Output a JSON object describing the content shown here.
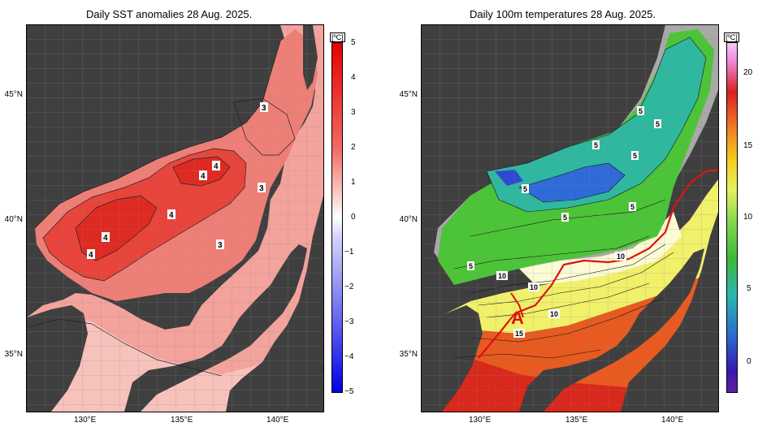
{
  "left": {
    "title": "Daily SST anomalies 28 Aug. 2025.",
    "unit": "[ºC]",
    "colorbar_ticks": [
      "5",
      "4",
      "3",
      "2",
      "1",
      "0",
      "−1",
      "−2",
      "−3",
      "−4",
      "−5"
    ],
    "contour_labels": [
      "3",
      "4",
      "4",
      "3",
      "4",
      "4",
      "4",
      "3"
    ],
    "colors": {
      "high": "#e8302a",
      "low": "#1a1aff",
      "zero": "#ffffff",
      "land": "#3f3f3f"
    }
  },
  "right": {
    "title": "Daily 100m temperatures 28 Aug. 2025.",
    "unit": "[ºC]",
    "colorbar_ticks": [
      "20",
      "15",
      "10",
      "5",
      "0"
    ],
    "contour_labels": [
      "5",
      "5",
      "5",
      "5",
      "5",
      "5",
      "5",
      "5",
      "10",
      "10",
      "10",
      "10",
      "15"
    ],
    "marker_label": "A",
    "colors": {
      "front": "#e01010",
      "land": "#3f3f3f"
    }
  },
  "axes": {
    "lat_labels": [
      "45°N",
      "40°N",
      "35°N"
    ],
    "lon_labels": [
      "130°E",
      "135°E",
      "140°E"
    ]
  }
}
